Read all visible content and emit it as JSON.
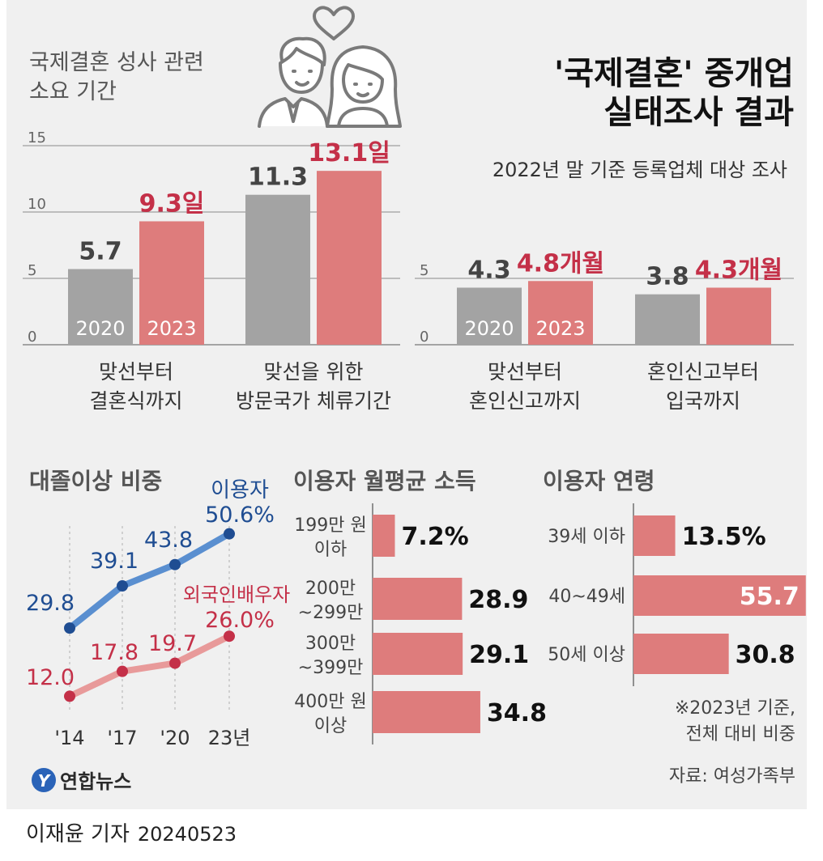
{
  "title": {
    "line1": "'국제결혼' 중개업",
    "line2": "실태조사 결과"
  },
  "subtitle": "2022년 말 기준 등록업체 대상 조사",
  "colors": {
    "gray": "#a3a3a3",
    "red": "#de7c7c",
    "red_text": "#c43048",
    "blue": "#5a8fd0",
    "blue_dark": "#1f4d92",
    "pink_line": "#e89a9a",
    "bg": "#f0f0f0"
  },
  "chart_data": [
    {
      "type": "bar",
      "title": "국제결혼 성사 관련 소요 기간",
      "title_lines": [
        "국제결혼 성사 관련",
        "소요 기간"
      ],
      "categories": [
        "맞선부터 결혼식까지",
        "맞선을 위한 방문국가 체류기간"
      ],
      "category_lines": [
        [
          "맞선부터",
          "결혼식까지"
        ],
        [
          "맞선을 위한",
          "방문국가 체류기간"
        ]
      ],
      "series": [
        {
          "name": "2020",
          "values": [
            5.7,
            11.3
          ],
          "labels": [
            "5.7",
            "11.3"
          ]
        },
        {
          "name": "2023",
          "values": [
            9.3,
            13.1
          ],
          "labels": [
            "9.3일",
            "13.1일"
          ]
        }
      ],
      "yticks": [
        "0",
        "5",
        "10",
        "15"
      ],
      "ylim": [
        0,
        15
      ],
      "grid": true
    },
    {
      "type": "bar",
      "title": "",
      "categories": [
        "맞선부터 혼인신고까지",
        "혼인신고부터 입국까지"
      ],
      "category_lines": [
        [
          "맞선부터",
          "혼인신고까지"
        ],
        [
          "혼인신고부터",
          "입국까지"
        ]
      ],
      "series": [
        {
          "name": "2020",
          "values": [
            4.3,
            3.8
          ],
          "labels": [
            "4.3",
            "3.8"
          ]
        },
        {
          "name": "2023",
          "values": [
            4.8,
            4.3
          ],
          "labels": [
            "4.8개월",
            "4.3개월"
          ]
        }
      ],
      "yticks": [
        "0",
        "5"
      ],
      "ylim": [
        0,
        5
      ],
      "grid": true
    },
    {
      "type": "line",
      "title": "대졸이상 비중",
      "x": [
        "'14",
        "'17",
        "'20",
        "23년"
      ],
      "series": [
        {
          "name": "이용자",
          "values": [
            29.8,
            39.1,
            43.8,
            50.6
          ],
          "labels": [
            "29.8",
            "39.1",
            "43.8",
            "50.6%"
          ]
        },
        {
          "name": "외국인배우자",
          "values": [
            12.0,
            17.8,
            19.7,
            26.0
          ],
          "labels": [
            "12.0",
            "17.8",
            "19.7",
            "26.0%"
          ]
        }
      ]
    },
    {
      "type": "bar",
      "orientation": "horizontal",
      "title": "이용자 월평균 소득",
      "categories": [
        "199만 원 이하",
        "200만 ~299만",
        "300만 ~399만",
        "400만 원 이상"
      ],
      "category_lines": [
        [
          "199만 원",
          "이하"
        ],
        [
          "200만",
          "~299만"
        ],
        [
          "300만",
          "~399만"
        ],
        [
          "400만 원",
          "이상"
        ]
      ],
      "values": [
        7.2,
        28.9,
        29.1,
        34.8
      ],
      "labels": [
        "7.2%",
        "28.9",
        "29.1",
        "34.8"
      ]
    },
    {
      "type": "bar",
      "orientation": "horizontal",
      "title": "이용자 연령",
      "categories": [
        "39세 이하",
        "40~49세",
        "50세 이상"
      ],
      "values": [
        13.5,
        55.7,
        30.8
      ],
      "labels": [
        "13.5%",
        "55.7",
        "30.8"
      ]
    }
  ],
  "footnote": [
    "※2023년 기준,",
    "전체 대비 비중"
  ],
  "source": "자료: 여성가족부",
  "logo": {
    "text": "연합뉴스",
    "mark": "Y"
  },
  "byline": {
    "reporter": "이재윤 기자",
    "date": "20240523"
  }
}
